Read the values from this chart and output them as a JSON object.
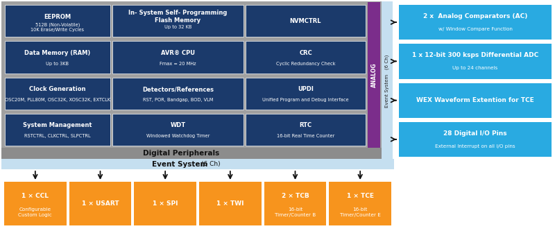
{
  "bg_color": "#ffffff",
  "dark_blue": "#1b3a6b",
  "light_blue_bg": "#c5dff0",
  "cyan_bg": "#29aae1",
  "orange": "#f7941d",
  "purple": "#7b2d8b",
  "gray_outer": "#8c8c8c",
  "gray_mid": "#a0a0a0",
  "white": "#ffffff",
  "black": "#111111",
  "grid_rows": [
    {
      "col1_title": "EEPROM",
      "col1_sub": "512B (Non-Volatile)\n10K Erase/Write Cycles",
      "col2_title": "In- System Self- Programming\nFlash Memory",
      "col2_sub": "Up to 32 KB",
      "col3_title": "NVMCTRL",
      "col3_sub": ""
    },
    {
      "col1_title": "Data Memory (RAM)",
      "col1_sub": "Up to 3KB",
      "col2_title": "AVR® CPU",
      "col2_sub": "Fmax = 20 MHz",
      "col3_title": "CRC",
      "col3_sub": "Cyclic Redundancy Check"
    },
    {
      "col1_title": "Clock Generation",
      "col1_sub": "OSC20M, PLL80M, OSC32K, XOSC32K, EXTCLK",
      "col2_title": "Detectors/References",
      "col2_sub": "RST, POR, Bandgap, BOD, VLM",
      "col3_title": "UPDI",
      "col3_sub": "Unified Program and Debug Interface"
    },
    {
      "col1_title": "System Management",
      "col1_sub": "RSTCTRL, CLKCTRL, SLPCTRL",
      "col2_title": "WDT",
      "col2_sub": "Windowed Watchdog Timer",
      "col3_title": "RTC",
      "col3_sub": "16-bit Real Time Counter"
    }
  ],
  "right_blocks": [
    {
      "title": "2 x  Analog Comparators (AC)",
      "sub": "w/ Window Compare Function"
    },
    {
      "title": "1 x 12-bit 300 ksps Differential ADC",
      "sub": "Up to 24 channels"
    },
    {
      "title": "WEX Waveform Extention for TCE",
      "sub": ""
    },
    {
      "title": "28 Digital I/O Pins",
      "sub": "External Interrupt on all I/O pins"
    }
  ],
  "bottom_blocks": [
    {
      "line1": "1 × CCL",
      "line2": "Configurable\nCustom Logic"
    },
    {
      "line1": "1 × USART",
      "line2": ""
    },
    {
      "line1": "1 × SPI",
      "line2": ""
    },
    {
      "line1": "1 × TWI",
      "line2": ""
    },
    {
      "line1": "2 × TCB",
      "line2": "16-bit\nTimer/Counter B"
    },
    {
      "line1": "1 × TCE",
      "line2": "16-bit\nTimer/Counter E"
    }
  ]
}
